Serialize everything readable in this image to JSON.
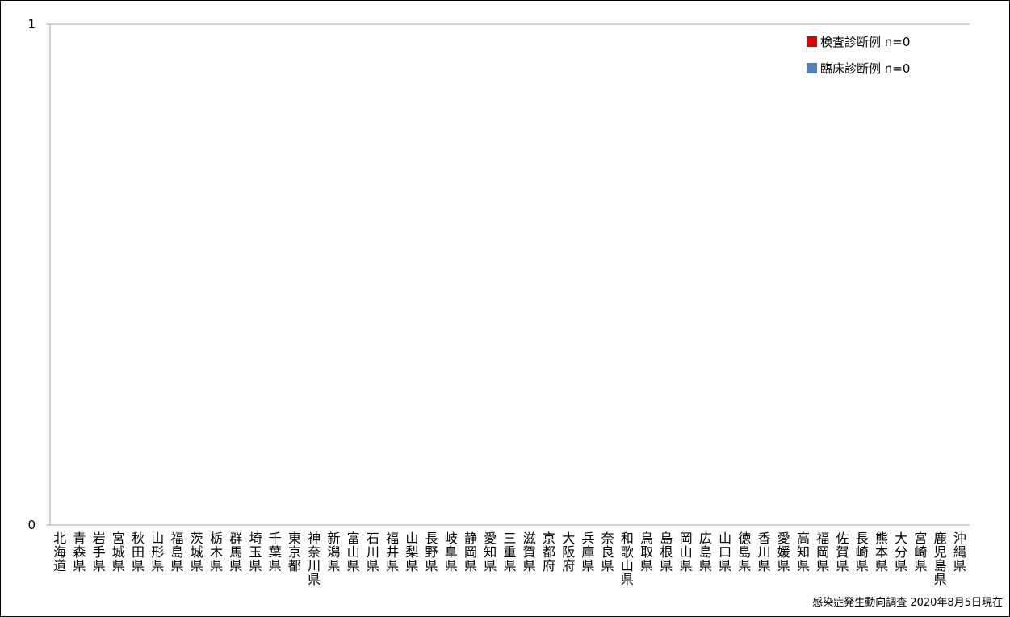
{
  "chart_data": {
    "type": "bar",
    "title": "",
    "xlabel": "",
    "ylabel": "",
    "ylim": [
      0,
      1
    ],
    "y_ticks": [
      "0",
      "1"
    ],
    "grid": false,
    "legend_position": "top-right",
    "categories": [
      "北海道",
      "青森県",
      "岩手県",
      "宮城県",
      "秋田県",
      "山形県",
      "福島県",
      "茨城県",
      "栃木県",
      "群馬県",
      "埼玉県",
      "千葉県",
      "東京都",
      "神奈川県",
      "新潟県",
      "富山県",
      "石川県",
      "福井県",
      "山梨県",
      "長野県",
      "岐阜県",
      "静岡県",
      "愛知県",
      "三重県",
      "滋賀県",
      "京都府",
      "大阪府",
      "兵庫県",
      "奈良県",
      "和歌山県",
      "鳥取県",
      "島根県",
      "岡山県",
      "広島県",
      "山口県",
      "徳島県",
      "香川県",
      "愛媛県",
      "高知県",
      "福岡県",
      "佐賀県",
      "長崎県",
      "熊本県",
      "大分県",
      "宮崎県",
      "鹿児島県",
      "沖縄県"
    ],
    "series": [
      {
        "name": "検査診断例 n=0",
        "color": "#e00000",
        "values": [
          0,
          0,
          0,
          0,
          0,
          0,
          0,
          0,
          0,
          0,
          0,
          0,
          0,
          0,
          0,
          0,
          0,
          0,
          0,
          0,
          0,
          0,
          0,
          0,
          0,
          0,
          0,
          0,
          0,
          0,
          0,
          0,
          0,
          0,
          0,
          0,
          0,
          0,
          0,
          0,
          0,
          0,
          0,
          0,
          0,
          0,
          0
        ]
      },
      {
        "name": "臨床診断例 n=0",
        "color": "#4f81bd",
        "values": [
          0,
          0,
          0,
          0,
          0,
          0,
          0,
          0,
          0,
          0,
          0,
          0,
          0,
          0,
          0,
          0,
          0,
          0,
          0,
          0,
          0,
          0,
          0,
          0,
          0,
          0,
          0,
          0,
          0,
          0,
          0,
          0,
          0,
          0,
          0,
          0,
          0,
          0,
          0,
          0,
          0,
          0,
          0,
          0,
          0,
          0,
          0
        ]
      }
    ],
    "source": "感染症発生動向調査 2020年8月5日現在"
  }
}
